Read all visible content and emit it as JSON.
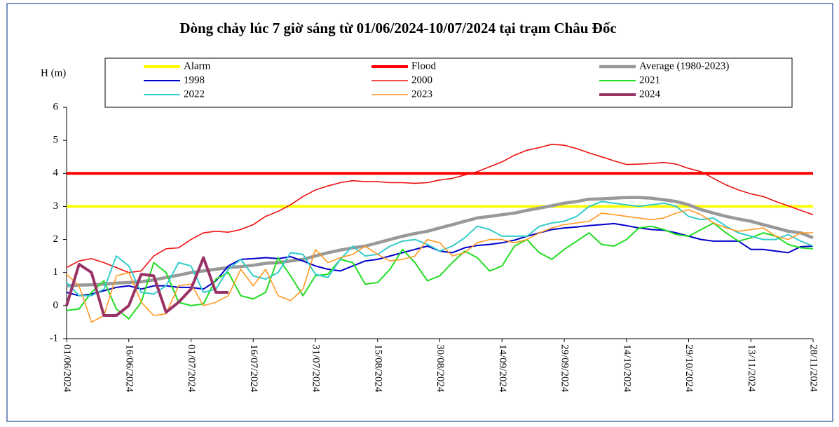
{
  "chart_data": {
    "type": "line",
    "title": "Dòng chảy lúc 7 giờ sáng từ 01/06/2024-10/07/2024 tại trạm Châu Đốc",
    "y_label": "H (m)",
    "x": [
      "01/06/2024",
      "04/06/2024",
      "07/06/2024",
      "10/06/2024",
      "13/06/2024",
      "16/06/2024",
      "19/06/2024",
      "22/06/2024",
      "25/06/2024",
      "28/06/2024",
      "01/07/2024",
      "04/07/2024",
      "07/07/2024",
      "10/07/2024",
      "13/07/2024",
      "16/07/2024",
      "19/07/2024",
      "22/07/2024",
      "25/07/2024",
      "28/07/2024",
      "31/07/2024",
      "03/08/2024",
      "06/08/2024",
      "09/08/2024",
      "12/08/2024",
      "15/08/2024",
      "18/08/2024",
      "21/08/2024",
      "24/08/2024",
      "27/08/2024",
      "30/08/2024",
      "02/09/2024",
      "05/09/2024",
      "08/09/2024",
      "11/09/2024",
      "14/09/2024",
      "17/09/2024",
      "20/09/2024",
      "23/09/2024",
      "26/09/2024",
      "29/09/2024",
      "02/10/2024",
      "05/10/2024",
      "08/10/2024",
      "11/10/2024",
      "14/10/2024",
      "17/10/2024",
      "20/10/2024",
      "23/10/2024",
      "26/10/2024",
      "29/10/2024",
      "01/11/2024",
      "04/11/2024",
      "07/11/2024",
      "10/11/2024",
      "13/11/2024",
      "16/11/2024",
      "19/11/2024",
      "22/11/2024",
      "25/11/2024",
      "28/11/2024"
    ],
    "xticks": [
      "01/06/2024",
      "16/06/2024",
      "01/07/2024",
      "16/07/2024",
      "31/07/2024",
      "15/08/2024",
      "30/08/2024",
      "14/09/2024",
      "29/09/2024",
      "14/10/2024",
      "29/10/2024",
      "13/11/2024",
      "28/11/2024"
    ],
    "ylim": [
      -1,
      6
    ],
    "yticks": [
      -1,
      0,
      1,
      2,
      3,
      4,
      5,
      6
    ],
    "series": [
      {
        "name": "Alarm",
        "color": "#ffff00",
        "width": 4,
        "values": [
          3,
          3,
          3,
          3,
          3,
          3,
          3,
          3,
          3,
          3,
          3,
          3,
          3,
          3,
          3,
          3,
          3,
          3,
          3,
          3,
          3,
          3,
          3,
          3,
          3,
          3,
          3,
          3,
          3,
          3,
          3,
          3,
          3,
          3,
          3,
          3,
          3,
          3,
          3,
          3,
          3,
          3,
          3,
          3,
          3,
          3,
          3,
          3,
          3,
          3,
          3,
          3,
          3,
          3,
          3,
          3,
          3,
          3,
          3,
          3,
          3
        ]
      },
      {
        "name": "Flood",
        "color": "#ff0000",
        "width": 4,
        "values": [
          4,
          4,
          4,
          4,
          4,
          4,
          4,
          4,
          4,
          4,
          4,
          4,
          4,
          4,
          4,
          4,
          4,
          4,
          4,
          4,
          4,
          4,
          4,
          4,
          4,
          4,
          4,
          4,
          4,
          4,
          4,
          4,
          4,
          4,
          4,
          4,
          4,
          4,
          4,
          4,
          4,
          4,
          4,
          4,
          4,
          4,
          4,
          4,
          4,
          4,
          4,
          4,
          4,
          4,
          4,
          4,
          4,
          4,
          4,
          4,
          4
        ]
      },
      {
        "name": "Average (1980-2023)",
        "color": "#999999",
        "width": 4.5,
        "values": [
          0.6,
          0.62,
          0.63,
          0.65,
          0.68,
          0.7,
          0.72,
          0.78,
          0.85,
          0.92,
          1.0,
          1.05,
          1.1,
          1.15,
          1.18,
          1.22,
          1.28,
          1.3,
          1.35,
          1.4,
          1.5,
          1.6,
          1.68,
          1.75,
          1.8,
          1.9,
          2.0,
          2.1,
          2.18,
          2.25,
          2.35,
          2.45,
          2.55,
          2.65,
          2.7,
          2.75,
          2.8,
          2.88,
          2.95,
          3.02,
          3.1,
          3.15,
          3.22,
          3.23,
          3.25,
          3.27,
          3.27,
          3.25,
          3.2,
          3.15,
          3.05,
          2.9,
          2.8,
          2.7,
          2.62,
          2.55,
          2.45,
          2.35,
          2.25,
          2.2,
          2.05
        ]
      },
      {
        "name": "1998",
        "color": "#0000cc",
        "width": 2,
        "values": [
          0.4,
          0.3,
          0.35,
          0.45,
          0.55,
          0.6,
          0.5,
          0.6,
          0.6,
          0.55,
          0.55,
          0.5,
          0.75,
          1.2,
          1.4,
          1.42,
          1.45,
          1.42,
          1.48,
          1.35,
          1.2,
          1.1,
          1.05,
          1.2,
          1.35,
          1.4,
          1.5,
          1.6,
          1.7,
          1.8,
          1.65,
          1.6,
          1.75,
          1.82,
          1.85,
          1.9,
          1.98,
          2.1,
          2.2,
          2.3,
          2.35,
          2.38,
          2.42,
          2.45,
          2.48,
          2.42,
          2.35,
          2.3,
          2.28,
          2.2,
          2.1,
          2.0,
          1.95,
          1.95,
          1.95,
          1.7,
          1.7,
          1.65,
          1.6,
          1.78,
          1.8
        ]
      },
      {
        "name": "2000",
        "color": "#ee1111",
        "width": 1.6,
        "values": [
          1.15,
          1.35,
          1.42,
          1.3,
          1.15,
          1.0,
          1.05,
          1.5,
          1.72,
          1.75,
          2.0,
          2.2,
          2.25,
          2.22,
          2.3,
          2.45,
          2.7,
          2.85,
          3.05,
          3.3,
          3.5,
          3.62,
          3.72,
          3.78,
          3.75,
          3.75,
          3.72,
          3.72,
          3.7,
          3.72,
          3.8,
          3.85,
          3.95,
          4.05,
          4.2,
          4.35,
          4.55,
          4.7,
          4.78,
          4.88,
          4.85,
          4.75,
          4.62,
          4.5,
          4.38,
          4.27,
          4.28,
          4.3,
          4.33,
          4.28,
          4.15,
          4.05,
          3.85,
          3.65,
          3.5,
          3.38,
          3.3,
          3.15,
          3.02,
          2.88,
          2.75
        ]
      },
      {
        "name": "2021",
        "color": "#22dd22",
        "width": 2,
        "values": [
          -0.15,
          -0.1,
          0.4,
          0.75,
          -0.1,
          -0.4,
          0.1,
          1.3,
          1.0,
          0.1,
          0.0,
          0.05,
          0.8,
          1.0,
          0.3,
          0.2,
          0.4,
          1.45,
          0.9,
          0.3,
          0.9,
          0.95,
          1.4,
          1.3,
          0.65,
          0.7,
          1.1,
          1.7,
          1.3,
          0.75,
          0.9,
          1.3,
          1.65,
          1.45,
          1.05,
          1.2,
          1.8,
          2.0,
          1.6,
          1.4,
          1.7,
          1.95,
          2.2,
          1.85,
          1.8,
          2.0,
          2.35,
          2.4,
          2.3,
          2.15,
          2.1,
          2.3,
          2.5,
          2.2,
          1.95,
          2.05,
          2.2,
          2.1,
          1.85,
          1.75,
          1.72
        ]
      },
      {
        "name": "2022",
        "color": "#33cccc",
        "width": 2,
        "values": [
          0.7,
          0.3,
          0.3,
          0.5,
          1.5,
          1.2,
          0.4,
          0.35,
          0.6,
          1.3,
          1.2,
          0.4,
          0.5,
          1.1,
          1.4,
          0.9,
          0.8,
          1.0,
          1.6,
          1.55,
          0.95,
          0.85,
          1.4,
          1.8,
          1.5,
          1.55,
          1.8,
          1.95,
          2.0,
          1.85,
          1.65,
          1.8,
          2.05,
          2.4,
          2.3,
          2.1,
          2.1,
          2.1,
          2.4,
          2.5,
          2.55,
          2.7,
          3.0,
          3.15,
          3.1,
          3.05,
          3.0,
          3.05,
          3.1,
          3.0,
          2.7,
          2.6,
          2.65,
          2.4,
          2.2,
          2.1,
          2.0,
          2.0,
          2.15,
          1.95,
          1.8
        ]
      },
      {
        "name": "2023",
        "color": "#ff9922",
        "width": 1.6,
        "values": [
          0.95,
          0.6,
          -0.5,
          -0.3,
          0.9,
          1.0,
          0.1,
          -0.3,
          -0.25,
          0.6,
          0.65,
          0.0,
          0.1,
          0.3,
          1.1,
          0.6,
          1.1,
          0.3,
          0.15,
          0.5,
          1.7,
          1.3,
          1.45,
          1.55,
          1.8,
          1.55,
          1.35,
          1.4,
          1.5,
          2.0,
          1.9,
          1.5,
          1.6,
          1.9,
          2.0,
          2.0,
          1.9,
          2.0,
          2.2,
          2.35,
          2.45,
          2.5,
          2.55,
          2.8,
          2.75,
          2.7,
          2.65,
          2.6,
          2.65,
          2.8,
          2.9,
          2.75,
          2.5,
          2.35,
          2.25,
          2.3,
          2.35,
          2.1,
          2.0,
          2.2,
          2.2
        ]
      },
      {
        "name": "2024",
        "color": "#993366",
        "width": 4,
        "values": [
          0.0,
          1.25,
          1.0,
          -0.3,
          -0.3,
          0.0,
          0.95,
          0.9,
          -0.2,
          0.1,
          0.5,
          1.45,
          0.4,
          0.4,
          null,
          null,
          null,
          null,
          null,
          null,
          null,
          null,
          null,
          null,
          null,
          null,
          null,
          null,
          null,
          null,
          null,
          null,
          null,
          null,
          null,
          null,
          null,
          null,
          null,
          null,
          null,
          null,
          null,
          null,
          null,
          null,
          null,
          null,
          null,
          null,
          null,
          null,
          null,
          null,
          null,
          null,
          null,
          null,
          null,
          null,
          null
        ]
      }
    ]
  }
}
